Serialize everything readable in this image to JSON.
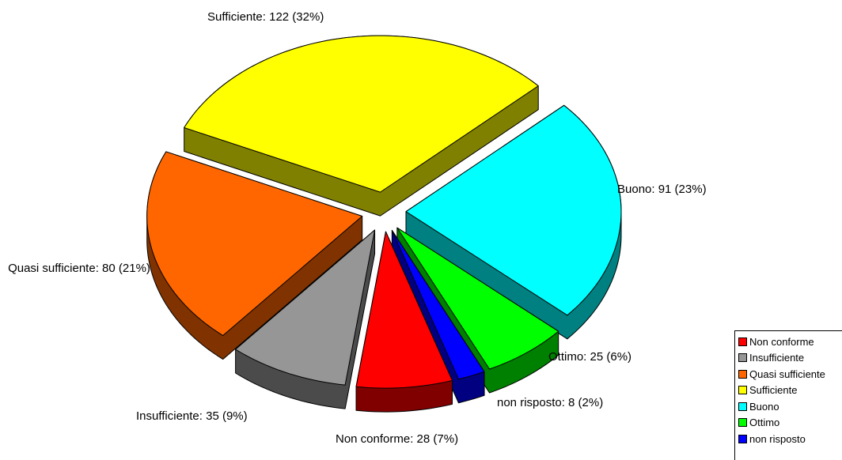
{
  "chart_data": {
    "type": "pie",
    "categories": [
      "Non conforme",
      "Insufficiente",
      "Quasi sufficiente",
      "Sufficiente",
      "Buono",
      "Ottimo",
      "non risposto"
    ],
    "values": [
      28,
      35,
      80,
      122,
      91,
      25,
      8
    ],
    "value_labels": [
      "Non conforme: 28 (7%)",
      "Insufficiente: 35 (9%)",
      "Quasi sufficiente: 80 (21%)",
      "Sufficiente: 122 (32%)",
      "Buono: 91 (23%)",
      "Ottimo: 25 (6%)",
      "non risposto: 8 (2%)"
    ],
    "colors": [
      "#ff0000",
      "#969696",
      "#ff6600",
      "#ffff00",
      "#00ffff",
      "#00ff00",
      "#0000ff"
    ],
    "legend": "bottom-right"
  }
}
